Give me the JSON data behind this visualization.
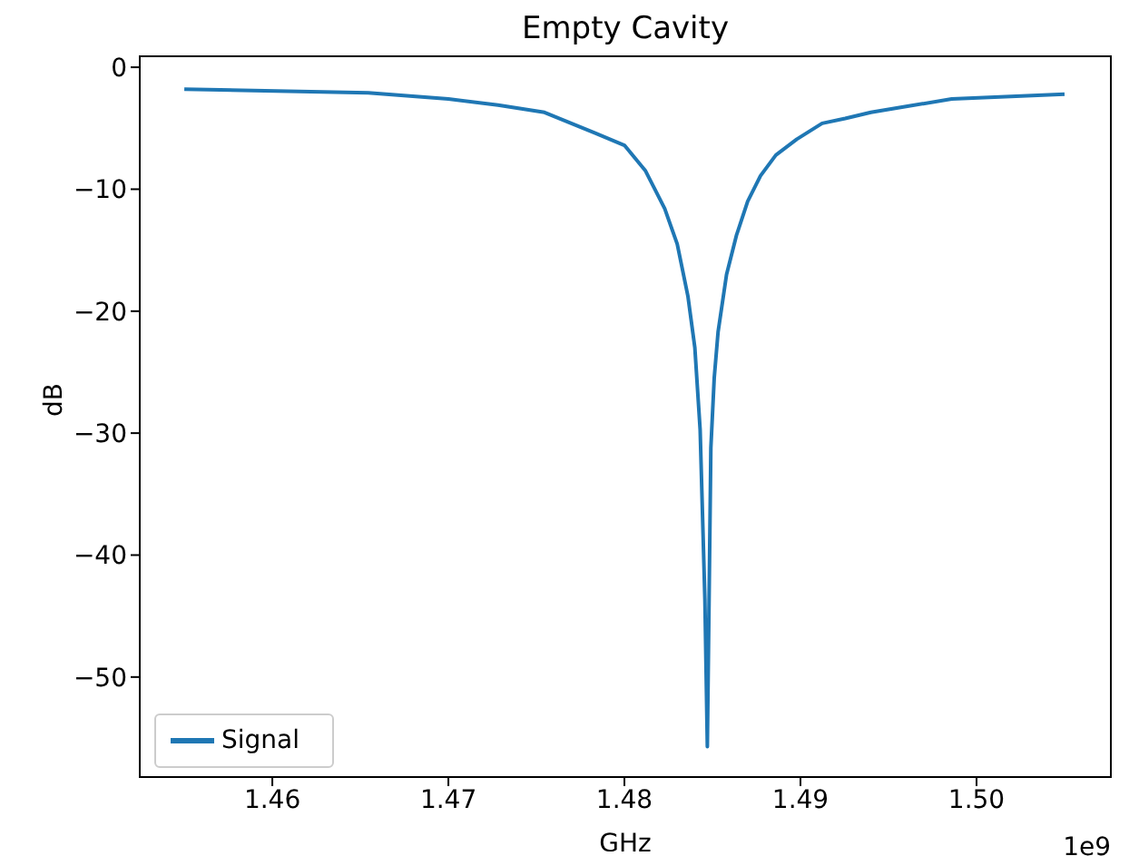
{
  "chart_data": {
    "type": "line",
    "title": "Empty Cavity",
    "xlabel": "GHz",
    "ylabel": "dB",
    "series": [
      {
        "name": "Signal",
        "color": "#1f77b4",
        "x": [
          1.455,
          1.46545,
          1.47,
          1.47282,
          1.47546,
          1.47834,
          1.48,
          1.4812,
          1.48229,
          1.483,
          1.48361,
          1.484,
          1.4843,
          1.48457,
          1.48471,
          1.48491,
          1.4851,
          1.48532,
          1.4858,
          1.48636,
          1.487,
          1.48773,
          1.4886,
          1.48979,
          1.49123,
          1.49254,
          1.494,
          1.49608,
          1.49859,
          1.505
        ],
        "values": [
          -1.8,
          -2.1,
          -2.6,
          -3.1,
          -3.7,
          -5.4,
          -6.4,
          -8.5,
          -11.6,
          -14.5,
          -18.8,
          -23,
          -29.7,
          -43.6,
          -55.7,
          -31.2,
          -25.5,
          -21.7,
          -17,
          -13.8,
          -11,
          -8.9,
          -7.2,
          -5.9,
          -4.6,
          -4.2,
          -3.7,
          -3.2,
          -2.6,
          -2.2
        ]
      }
    ],
    "xlim": [
      1.45247,
      1.50763
    ],
    "xticks": [
      1.46,
      1.47,
      1.48,
      1.49,
      {
        "value": 1.5,
        "label": "1.50"
      }
    ],
    "ylim": [
      -58.2,
      0.9
    ],
    "yticks": [
      0,
      -10,
      -20,
      -30,
      -40,
      -50
    ],
    "annotations": [
      "1e9"
    ],
    "legend": "bottom left",
    "grid": false,
    "marker": "none",
    "line_style": "solid"
  }
}
